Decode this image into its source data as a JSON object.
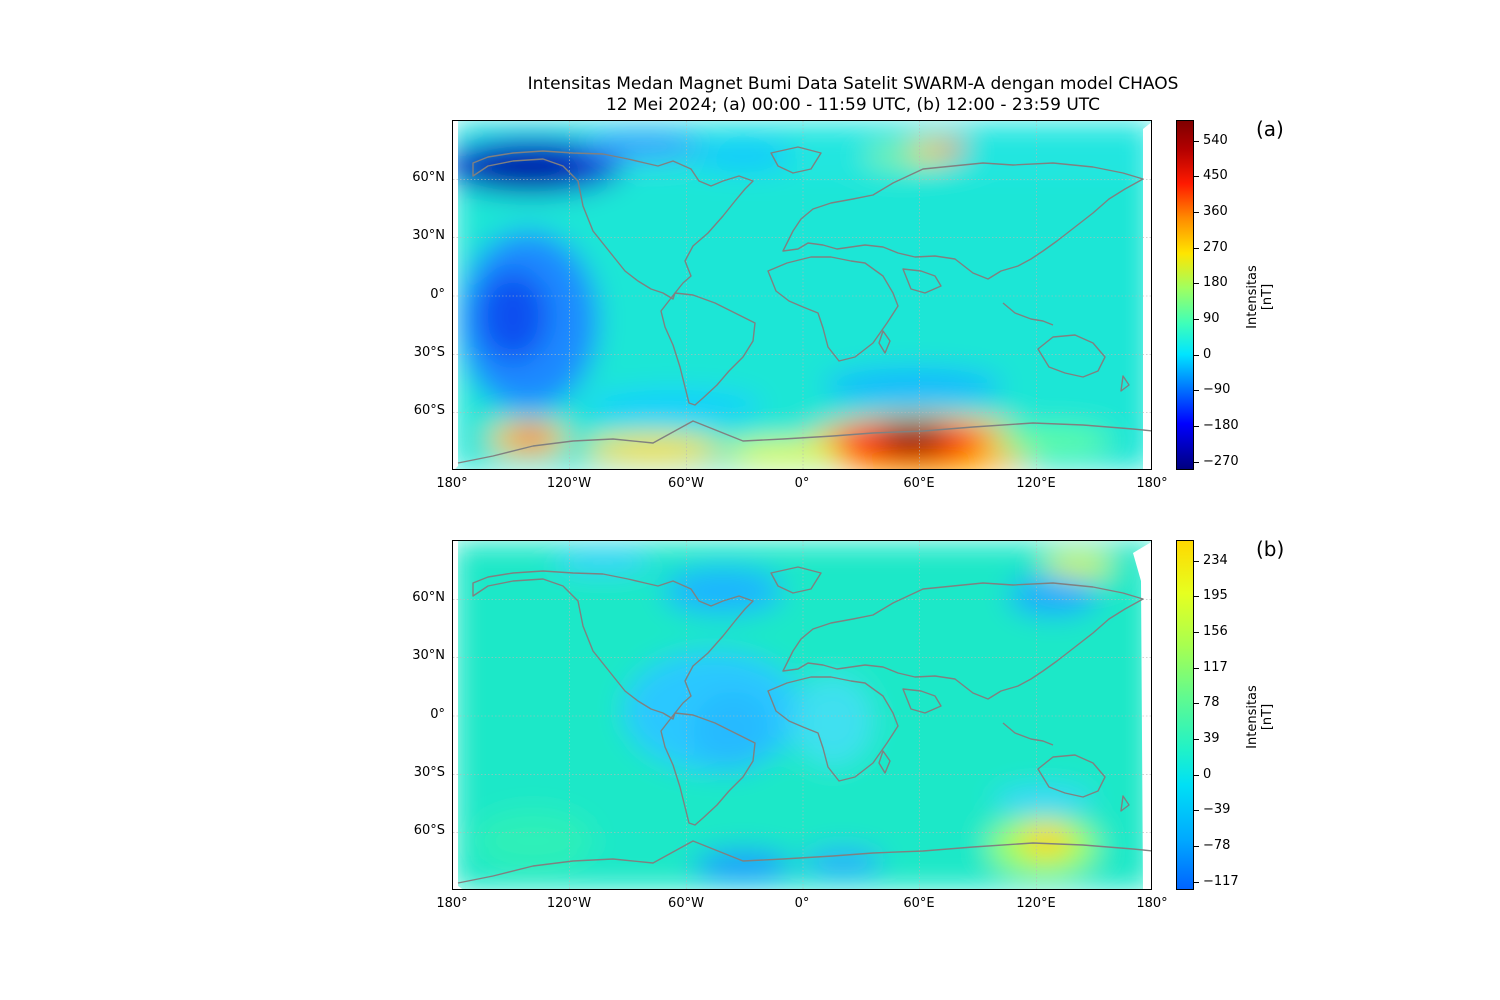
{
  "title_line1": "Intensitas Medan Magnet Bumi Data Satelit SWARM-A dengan model CHAOS",
  "title_line2": "12 Mei 2024; (a) 00:00 - 11:59 UTC, (b) 12:00 - 23:59 UTC",
  "projection": "PlateCarree",
  "lat_ticks": [
    "60°N",
    "30°N",
    "0°",
    "30°S",
    "60°S"
  ],
  "lat_values": [
    60,
    30,
    0,
    -30,
    -60
  ],
  "lon_ticks": [
    "180°",
    "120°W",
    "60°W",
    "0°",
    "60°E",
    "120°E",
    "180°"
  ],
  "lon_values": [
    -180,
    -120,
    -60,
    0,
    60,
    120,
    180
  ],
  "coastline_color": "#808080",
  "panels": [
    {
      "tag": "(a)",
      "colormap": "jet",
      "colorbar_label_line1": "Intensitas",
      "colorbar_label_line2": "[nT]",
      "colorbar_ticks": [
        "540",
        "450",
        "360",
        "270",
        "180",
        "90",
        "0",
        "−90",
        "−180",
        "−270"
      ],
      "colorbar_values": [
        540,
        450,
        360,
        270,
        180,
        90,
        0,
        -90,
        -180,
        -270
      ],
      "colorbar_range": [
        -300,
        590
      ]
    },
    {
      "tag": "(b)",
      "colormap": "jet (upper part)",
      "colorbar_label_line1": "Intensitas",
      "colorbar_label_line2": "[nT]",
      "colorbar_ticks": [
        "234",
        "195",
        "156",
        "117",
        "78",
        "39",
        "0",
        "−39",
        "−78",
        "−117"
      ],
      "colorbar_values": [
        234,
        195,
        156,
        117,
        78,
        39,
        0,
        -39,
        -78,
        -117
      ],
      "colorbar_range": [
        -127,
        256
      ]
    }
  ]
}
